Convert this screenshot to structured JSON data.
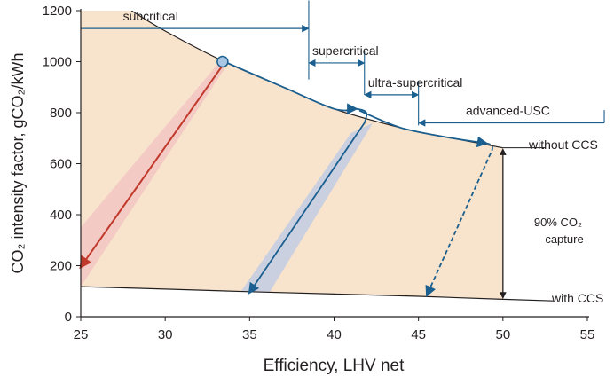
{
  "chart_data": {
    "type": "area",
    "xlabel": "Efficiency,  LHV net",
    "ylabel": "CO₂ intensity factor, gCO₂/kWh",
    "xlim": [
      25,
      55
    ],
    "ylim": [
      0,
      1200
    ],
    "xticks": [
      25,
      30,
      35,
      40,
      45,
      50,
      55
    ],
    "yticks": [
      0,
      200,
      400,
      600,
      800,
      1000,
      1200
    ],
    "grid": false,
    "colors": {
      "region_fill": "#f8e4cc",
      "curve": "#231f20",
      "arrow_blue": "#1a5f8f",
      "arrow_red": "#c0392b",
      "band_red": "#f3c6c3",
      "band_blue": "#c3cde3",
      "marker_fill": "#a9c6e3"
    },
    "series": [
      {
        "points": [
          [
            28,
            1200
          ],
          [
            30,
            1120
          ],
          [
            33.5,
            1000
          ],
          [
            37,
            900
          ],
          [
            40,
            815
          ],
          [
            44,
            740
          ],
          [
            47,
            700
          ],
          [
            50,
            662
          ]
        ]
      },
      {
        "points": [
          [
            25,
            118
          ],
          [
            30,
            108
          ],
          [
            35,
            98
          ],
          [
            40,
            89
          ],
          [
            45,
            80
          ],
          [
            50,
            68
          ],
          [
            53,
            62
          ]
        ]
      }
    ],
    "marker": [
      33.4,
      1000
    ],
    "arrows": [
      {
        "color": "red",
        "from": [
          33.5,
          995
        ],
        "to": [
          25,
          195
        ]
      },
      {
        "color": "blue",
        "from": [
          33.5,
          1000
        ],
        "to": [
          41.3,
          815
        ],
        "path": [
          [
            41.8,
            760
          ],
          [
            35,
            95
          ]
        ],
        "end": [
          35,
          95
        ]
      },
      {
        "color": "blue",
        "from": [
          41.5,
          808
        ],
        "to": [
          49,
          680
        ],
        "path": [
          [
            49,
            600
          ],
          [
            45.5,
            85
          ]
        ],
        "end": [
          45.5,
          85
        ],
        "dashed": true
      }
    ],
    "bands": [
      {
        "color": "red",
        "points": [
          [
            33.1,
            990
          ],
          [
            25,
            350
          ],
          [
            25,
            118
          ],
          [
            33.7,
            990
          ]
        ]
      },
      {
        "color": "blue",
        "points": [
          [
            41,
            720
          ],
          [
            34.5,
            100
          ],
          [
            36.2,
            98
          ],
          [
            42.3,
            760
          ]
        ]
      }
    ],
    "vertical_arrow": {
      "x": 50,
      "from": 662,
      "to": 68
    },
    "ranges": [
      {
        "label": "subcritical",
        "x0": 25,
        "x1": 38.5,
        "y": 1130,
        "divider_from": 1240,
        "divider_to": 930
      },
      {
        "label": "supercritical",
        "x0": 38.5,
        "x1": 41.8,
        "y": 995,
        "divider_from": 1040,
        "divider_to": 870
      },
      {
        "label": "ultra-supercritical",
        "x0": 41.8,
        "x1": 45,
        "y": 870,
        "divider_from": 920,
        "divider_to": 750
      },
      {
        "label": "advanced-USC",
        "x0": 45,
        "x1": 56,
        "y": 760,
        "divider_from": 810,
        "divider_to": 760
      }
    ],
    "annotations": {
      "without_ccs": "without CCS",
      "with_ccs": "with CCS",
      "capture_line1": "90% CO₂",
      "capture_line2": "capture"
    }
  }
}
